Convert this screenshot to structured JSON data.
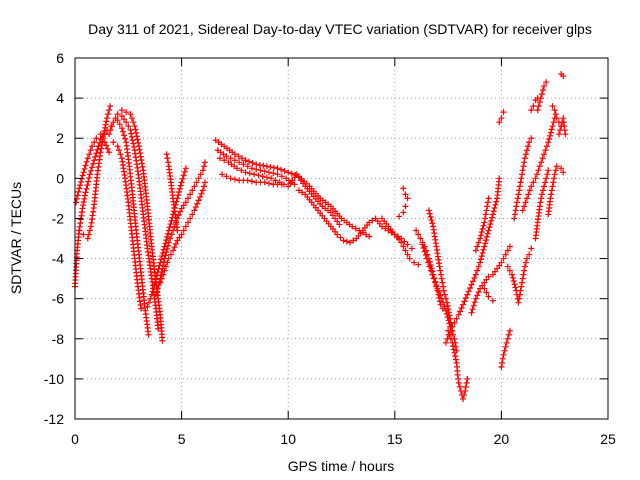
{
  "chart_data": {
    "type": "scatter",
    "title": "Day 311 of 2021, Sidereal Day-to-day VTEC variation (SDTVAR) for receiver glps",
    "xlabel": "GPS time / hours",
    "ylabel": "SDTVAR / TECUs",
    "xlim": [
      0,
      25
    ],
    "ylim": [
      -12,
      6
    ],
    "xticks": [
      "0",
      "5",
      "10",
      "15",
      "20",
      "25"
    ],
    "yticks": [
      "-12",
      "-10",
      "-8",
      "-6",
      "-4",
      "-2",
      "0",
      "2",
      "4",
      "6"
    ],
    "grid": true,
    "marker": "+",
    "series_color": "#ff0000",
    "tracks": [
      [
        [
          0.0,
          -5.4
        ],
        [
          0.1,
          -3.6
        ],
        [
          0.2,
          -2.6
        ],
        [
          0.35,
          -1.5
        ],
        [
          0.5,
          -0.7
        ],
        [
          0.7,
          0.2
        ],
        [
          0.9,
          0.9
        ],
        [
          1.1,
          1.6
        ],
        [
          1.3,
          2.1
        ],
        [
          1.5,
          2.4
        ],
        [
          1.7,
          2.6
        ]
      ],
      [
        [
          0.2,
          -2.6
        ],
        [
          0.4,
          -2.8
        ],
        [
          0.6,
          -3.0
        ],
        [
          0.75,
          -2.4
        ],
        [
          0.9,
          -1.3
        ],
        [
          1.05,
          0.2
        ],
        [
          1.2,
          1.3
        ],
        [
          1.35,
          2.2
        ],
        [
          1.5,
          3.0
        ],
        [
          1.65,
          3.6
        ]
      ],
      [
        [
          0.05,
          -1.2
        ],
        [
          0.2,
          -0.5
        ],
        [
          0.4,
          0.3
        ],
        [
          0.6,
          1.0
        ],
        [
          0.8,
          1.6
        ],
        [
          1.0,
          2.0
        ],
        [
          1.2,
          2.2
        ],
        [
          1.4,
          1.8
        ],
        [
          1.6,
          1.3
        ]
      ],
      [
        [
          1.6,
          2.2
        ],
        [
          1.8,
          2.8
        ],
        [
          2.0,
          3.2
        ],
        [
          2.2,
          3.1
        ],
        [
          2.4,
          2.8
        ],
        [
          2.6,
          2.4
        ],
        [
          2.8,
          1.4
        ],
        [
          3.0,
          0.0
        ],
        [
          3.2,
          -1.8
        ],
        [
          3.4,
          -3.5
        ],
        [
          3.6,
          -5.0
        ],
        [
          3.8,
          -6.5
        ],
        [
          3.9,
          -7.5
        ]
      ],
      [
        [
          2.0,
          2.9
        ],
        [
          2.2,
          2.5
        ],
        [
          2.4,
          1.8
        ],
        [
          2.55,
          0.6
        ],
        [
          2.7,
          -0.8
        ],
        [
          2.85,
          -2.4
        ],
        [
          3.0,
          -3.8
        ],
        [
          3.15,
          -5.2
        ],
        [
          3.3,
          -6.6
        ],
        [
          3.45,
          -7.8
        ]
      ],
      [
        [
          2.2,
          3.4
        ],
        [
          2.4,
          3.3
        ],
        [
          2.6,
          3.2
        ],
        [
          2.8,
          2.6
        ],
        [
          3.0,
          1.6
        ],
        [
          3.2,
          0.4
        ],
        [
          3.4,
          -1.4
        ],
        [
          3.6,
          -3.4
        ],
        [
          3.8,
          -5.2
        ],
        [
          4.0,
          -6.8
        ],
        [
          4.1,
          -8.1
        ]
      ],
      [
        [
          1.8,
          1.8
        ],
        [
          2.0,
          1.6
        ],
        [
          2.2,
          1.0
        ],
        [
          2.35,
          0.0
        ],
        [
          2.5,
          -1.2
        ],
        [
          2.65,
          -2.6
        ],
        [
          2.8,
          -4.0
        ],
        [
          2.95,
          -5.4
        ],
        [
          3.1,
          -6.5
        ]
      ],
      [
        [
          3.4,
          -6.4
        ],
        [
          3.6,
          -5.8
        ],
        [
          3.8,
          -5.0
        ],
        [
          4.0,
          -4.2
        ],
        [
          4.2,
          -3.4
        ],
        [
          4.4,
          -2.6
        ],
        [
          4.6,
          -1.8
        ],
        [
          4.8,
          -1.0
        ],
        [
          5.0,
          -0.2
        ],
        [
          5.2,
          0.5
        ]
      ],
      [
        [
          3.8,
          -5.8
        ],
        [
          4.0,
          -5.0
        ],
        [
          4.2,
          -4.0
        ],
        [
          4.4,
          -3.2
        ],
        [
          4.6,
          -2.6
        ],
        [
          4.8,
          -2.0
        ],
        [
          5.0,
          -1.5
        ],
        [
          5.2,
          -1.2
        ],
        [
          5.4,
          -0.8
        ],
        [
          5.6,
          -0.4
        ],
        [
          5.8,
          0.0
        ],
        [
          6.0,
          0.4
        ],
        [
          6.1,
          0.8
        ]
      ],
      [
        [
          4.0,
          -5.2
        ],
        [
          4.2,
          -4.6
        ],
        [
          4.4,
          -4.0
        ],
        [
          4.6,
          -3.6
        ],
        [
          4.8,
          -3.1
        ],
        [
          5.0,
          -2.8
        ],
        [
          5.2,
          -2.4
        ],
        [
          5.4,
          -2.0
        ],
        [
          5.6,
          -1.6
        ],
        [
          5.8,
          -1.1
        ],
        [
          6.0,
          -0.6
        ],
        [
          6.1,
          -0.2
        ]
      ],
      [
        [
          4.3,
          1.2
        ],
        [
          4.4,
          0.6
        ],
        [
          4.5,
          -0.2
        ],
        [
          4.6,
          -1.0
        ],
        [
          4.7,
          -1.8
        ],
        [
          4.8,
          -2.6
        ]
      ],
      [
        [
          6.6,
          1.9
        ],
        [
          7.0,
          1.6
        ],
        [
          7.5,
          1.2
        ],
        [
          8.0,
          0.9
        ],
        [
          8.5,
          0.7
        ],
        [
          9.0,
          0.6
        ],
        [
          9.5,
          0.5
        ],
        [
          10.0,
          0.3
        ],
        [
          10.5,
          0.1
        ],
        [
          11.0,
          -0.4
        ],
        [
          11.5,
          -1.0
        ],
        [
          12.0,
          -1.4
        ],
        [
          12.5,
          -2.0
        ],
        [
          13.0,
          -2.4
        ],
        [
          13.5,
          -2.7
        ],
        [
          13.8,
          -2.9
        ]
      ],
      [
        [
          6.8,
          1.0
        ],
        [
          7.2,
          0.8
        ],
        [
          7.6,
          0.5
        ],
        [
          8.0,
          0.3
        ],
        [
          8.4,
          0.2
        ],
        [
          8.8,
          0.1
        ],
        [
          9.2,
          0.0
        ],
        [
          9.6,
          -0.2
        ],
        [
          10.0,
          -0.4
        ],
        [
          10.4,
          0.2
        ],
        [
          10.8,
          -0.4
        ],
        [
          11.2,
          -0.9
        ],
        [
          11.6,
          -1.4
        ],
        [
          12.0,
          -1.7
        ],
        [
          12.4,
          -2.3
        ]
      ],
      [
        [
          6.7,
          1.4
        ],
        [
          7.1,
          1.1
        ],
        [
          7.5,
          0.9
        ],
        [
          7.9,
          0.7
        ],
        [
          8.3,
          0.5
        ],
        [
          8.7,
          0.4
        ],
        [
          9.1,
          0.3
        ],
        [
          9.5,
          0.2
        ],
        [
          9.9,
          0.0
        ],
        [
          10.3,
          -0.3
        ]
      ],
      [
        [
          6.9,
          0.2
        ],
        [
          7.3,
          0.0
        ],
        [
          7.7,
          -0.1
        ],
        [
          8.1,
          -0.1
        ],
        [
          8.5,
          -0.2
        ],
        [
          8.9,
          -0.2
        ],
        [
          9.3,
          -0.3
        ],
        [
          9.7,
          -0.3
        ]
      ],
      [
        [
          10.5,
          -0.6
        ],
        [
          10.8,
          -0.8
        ],
        [
          11.1,
          -1.2
        ],
        [
          11.4,
          -1.6
        ],
        [
          11.7,
          -2.0
        ],
        [
          12.0,
          -2.4
        ],
        [
          12.3,
          -2.8
        ],
        [
          12.6,
          -3.1
        ],
        [
          12.9,
          -3.2
        ],
        [
          13.2,
          -3.0
        ],
        [
          13.5,
          -2.6
        ],
        [
          13.8,
          -2.2
        ],
        [
          14.1,
          -2.0
        ],
        [
          14.4,
          -2.4
        ],
        [
          14.7,
          -2.6
        ],
        [
          15.0,
          -2.8
        ],
        [
          15.3,
          -3.0
        ],
        [
          15.6,
          -3.3
        ],
        [
          15.8,
          -3.5
        ]
      ],
      [
        [
          14.4,
          -2.0
        ],
        [
          14.7,
          -2.4
        ],
        [
          15.0,
          -2.8
        ],
        [
          15.3,
          -3.2
        ],
        [
          15.5,
          -3.6
        ],
        [
          15.7,
          -4.0
        ],
        [
          15.9,
          -4.2
        ],
        [
          16.1,
          -4.3
        ]
      ],
      [
        [
          15.2,
          -1.9
        ],
        [
          15.4,
          -1.7
        ],
        [
          15.5,
          -1.4
        ]
      ],
      [
        [
          15.4,
          -0.5
        ],
        [
          15.5,
          -0.8
        ],
        [
          15.6,
          -1.0
        ]
      ],
      [
        [
          16.0,
          -2.6
        ],
        [
          16.2,
          -3.0
        ],
        [
          16.4,
          -3.4
        ],
        [
          16.6,
          -4.0
        ],
        [
          16.8,
          -4.8
        ],
        [
          17.0,
          -5.5
        ],
        [
          17.2,
          -6.0
        ],
        [
          17.4,
          -6.6
        ],
        [
          17.6,
          -7.4
        ],
        [
          17.8,
          -8.0
        ],
        [
          17.9,
          -8.6
        ]
      ],
      [
        [
          16.6,
          -1.6
        ],
        [
          16.8,
          -2.4
        ],
        [
          16.95,
          -3.4
        ],
        [
          17.1,
          -4.4
        ],
        [
          17.2,
          -5.0
        ],
        [
          17.3,
          -5.6
        ],
        [
          17.45,
          -6.2
        ],
        [
          17.6,
          -7.0
        ],
        [
          17.7,
          -7.6
        ]
      ],
      [
        [
          16.3,
          -3.3
        ],
        [
          16.5,
          -4.0
        ],
        [
          16.7,
          -4.6
        ],
        [
          16.9,
          -5.2
        ],
        [
          17.05,
          -5.8
        ],
        [
          17.15,
          -6.3
        ],
        [
          17.25,
          -6.5
        ]
      ],
      [
        [
          17.5,
          -7.6
        ],
        [
          17.7,
          -8.2
        ],
        [
          17.8,
          -8.7
        ],
        [
          17.9,
          -9.2
        ],
        [
          17.95,
          -9.8
        ],
        [
          18.0,
          -10.2
        ],
        [
          18.1,
          -10.6
        ],
        [
          18.2,
          -11.0
        ],
        [
          18.3,
          -10.6
        ],
        [
          18.4,
          -10.0
        ]
      ],
      [
        [
          17.4,
          -8.2
        ],
        [
          17.6,
          -7.6
        ],
        [
          17.8,
          -7.2
        ],
        [
          18.0,
          -6.8
        ],
        [
          18.2,
          -6.3
        ],
        [
          18.4,
          -5.8
        ],
        [
          18.6,
          -5.3
        ],
        [
          18.8,
          -4.8
        ],
        [
          19.0,
          -4.2
        ],
        [
          19.2,
          -3.4
        ],
        [
          19.4,
          -2.6
        ],
        [
          19.6,
          -1.8
        ],
        [
          19.8,
          -1.0
        ],
        [
          19.9,
          0.0
        ]
      ],
      [
        [
          18.6,
          -6.7
        ],
        [
          18.8,
          -6.0
        ],
        [
          19.0,
          -5.5
        ],
        [
          19.2,
          -5.2
        ],
        [
          19.4,
          -4.9
        ],
        [
          19.6,
          -4.8
        ],
        [
          19.8,
          -4.5
        ],
        [
          20.0,
          -4.2
        ],
        [
          20.2,
          -3.8
        ],
        [
          20.4,
          -3.4
        ]
      ],
      [
        [
          18.8,
          -3.6
        ],
        [
          19.0,
          -3.0
        ],
        [
          19.2,
          -2.2
        ],
        [
          19.3,
          -1.6
        ],
        [
          19.4,
          -1.0
        ]
      ],
      [
        [
          19.2,
          -5.5
        ],
        [
          19.4,
          -5.9
        ],
        [
          19.6,
          -6.1
        ]
      ],
      [
        [
          20.0,
          -9.4
        ],
        [
          20.1,
          -8.8
        ],
        [
          20.2,
          -8.4
        ],
        [
          20.3,
          -8.0
        ],
        [
          20.4,
          -7.6
        ]
      ],
      [
        [
          20.3,
          -4.4
        ],
        [
          20.5,
          -4.8
        ],
        [
          20.7,
          -5.6
        ],
        [
          20.8,
          -6.2
        ],
        [
          20.9,
          -5.6
        ],
        [
          21.0,
          -5.0
        ],
        [
          21.1,
          -4.4
        ],
        [
          21.2,
          -4.0
        ],
        [
          21.3,
          -3.8
        ],
        [
          21.4,
          -3.5
        ]
      ],
      [
        [
          20.6,
          -2.0
        ],
        [
          20.7,
          -1.4
        ],
        [
          20.8,
          -0.8
        ],
        [
          20.9,
          -0.2
        ],
        [
          21.0,
          0.4
        ],
        [
          21.1,
          1.0
        ],
        [
          21.2,
          1.4
        ],
        [
          21.3,
          1.8
        ],
        [
          21.4,
          2.0
        ]
      ],
      [
        [
          21.0,
          -1.6
        ],
        [
          21.2,
          -1.0
        ],
        [
          21.4,
          -0.4
        ],
        [
          21.6,
          0.0
        ],
        [
          21.8,
          0.6
        ],
        [
          22.0,
          1.2
        ],
        [
          22.2,
          1.8
        ],
        [
          22.4,
          2.6
        ],
        [
          22.5,
          3.0
        ]
      ],
      [
        [
          21.6,
          -3.0
        ],
        [
          21.7,
          -2.2
        ],
        [
          21.8,
          -1.4
        ],
        [
          21.9,
          -0.8
        ],
        [
          22.0,
          -0.4
        ],
        [
          22.1,
          0.0
        ],
        [
          22.2,
          0.4
        ]
      ],
      [
        [
          22.2,
          -1.8
        ],
        [
          22.3,
          -1.0
        ],
        [
          22.4,
          -0.4
        ],
        [
          22.5,
          0.2
        ],
        [
          22.6,
          0.6
        ]
      ],
      [
        [
          21.7,
          3.4
        ],
        [
          21.8,
          3.8
        ],
        [
          21.9,
          4.2
        ],
        [
          22.0,
          4.6
        ],
        [
          22.1,
          4.8
        ]
      ],
      [
        [
          21.4,
          3.4
        ],
        [
          21.5,
          3.6
        ],
        [
          21.6,
          3.9
        ],
        [
          21.7,
          4.0
        ]
      ],
      [
        [
          22.4,
          3.6
        ],
        [
          22.5,
          3.4
        ],
        [
          22.6,
          3.0
        ],
        [
          22.7,
          2.8
        ],
        [
          22.8,
          2.6
        ]
      ],
      [
        [
          22.7,
          2.2
        ],
        [
          22.8,
          2.6
        ],
        [
          22.9,
          3.0
        ],
        [
          22.95,
          2.6
        ],
        [
          23.0,
          2.2
        ]
      ],
      [
        [
          22.8,
          5.2
        ],
        [
          22.9,
          5.1
        ]
      ],
      [
        [
          22.8,
          0.5
        ],
        [
          22.9,
          0.3
        ]
      ],
      [
        [
          19.9,
          2.8
        ],
        [
          20.0,
          3.0
        ],
        [
          20.1,
          3.3
        ]
      ]
    ]
  }
}
